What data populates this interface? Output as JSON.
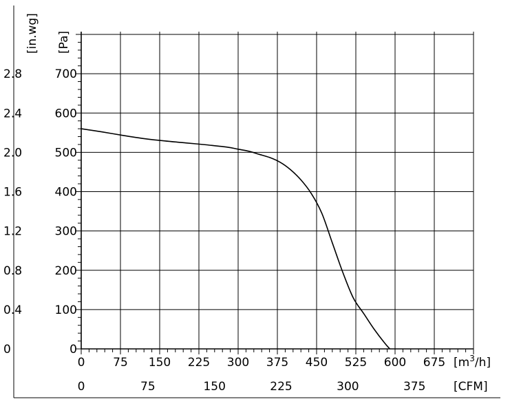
{
  "chart_data": {
    "type": "line",
    "title": "",
    "grid": true,
    "x_axis_primary": {
      "unit_prefix": "[m",
      "unit_superscript": "3",
      "unit_suffix": "/h]",
      "range": [
        0,
        750
      ],
      "ticks": [
        0,
        75,
        150,
        225,
        300,
        375,
        450,
        525,
        600,
        675
      ],
      "tick_labels": [
        "0",
        "75",
        "150",
        "225",
        "300",
        "375",
        "450",
        "525",
        "600",
        "675"
      ]
    },
    "x_axis_secondary": {
      "unit": "[CFM]",
      "ticks": [
        0,
        75,
        150,
        225,
        300,
        375
      ],
      "tick_labels": [
        "0",
        "75",
        "150",
        "225",
        "300",
        "375"
      ]
    },
    "y_axis_primary": {
      "unit": "[Pa]",
      "range": [
        0,
        800
      ],
      "ticks": [
        0,
        100,
        200,
        300,
        400,
        500,
        600,
        700
      ],
      "tick_labels": [
        "0",
        "100",
        "200",
        "300",
        "400",
        "500",
        "600",
        "700"
      ]
    },
    "y_axis_secondary": {
      "unit": "[in.wg]",
      "tick_labels": [
        "0",
        "0.4",
        "0.8",
        "1.2",
        "1.6",
        "2.0",
        "2.4",
        "2.8"
      ]
    },
    "series": [
      {
        "x": [
          0,
          40,
          80,
          120,
          160,
          200,
          240,
          280,
          300,
          320,
          340,
          360,
          380,
          400,
          420,
          440,
          460,
          480,
          500,
          520,
          540,
          560,
          580,
          590
        ],
        "y": [
          560,
          552,
          543,
          535,
          529,
          524,
          519,
          513,
          508,
          503,
          495,
          487,
          475,
          456,
          430,
          395,
          345,
          270,
          195,
          130,
          90,
          50,
          15,
          0
        ],
        "color": "#000000"
      }
    ]
  }
}
